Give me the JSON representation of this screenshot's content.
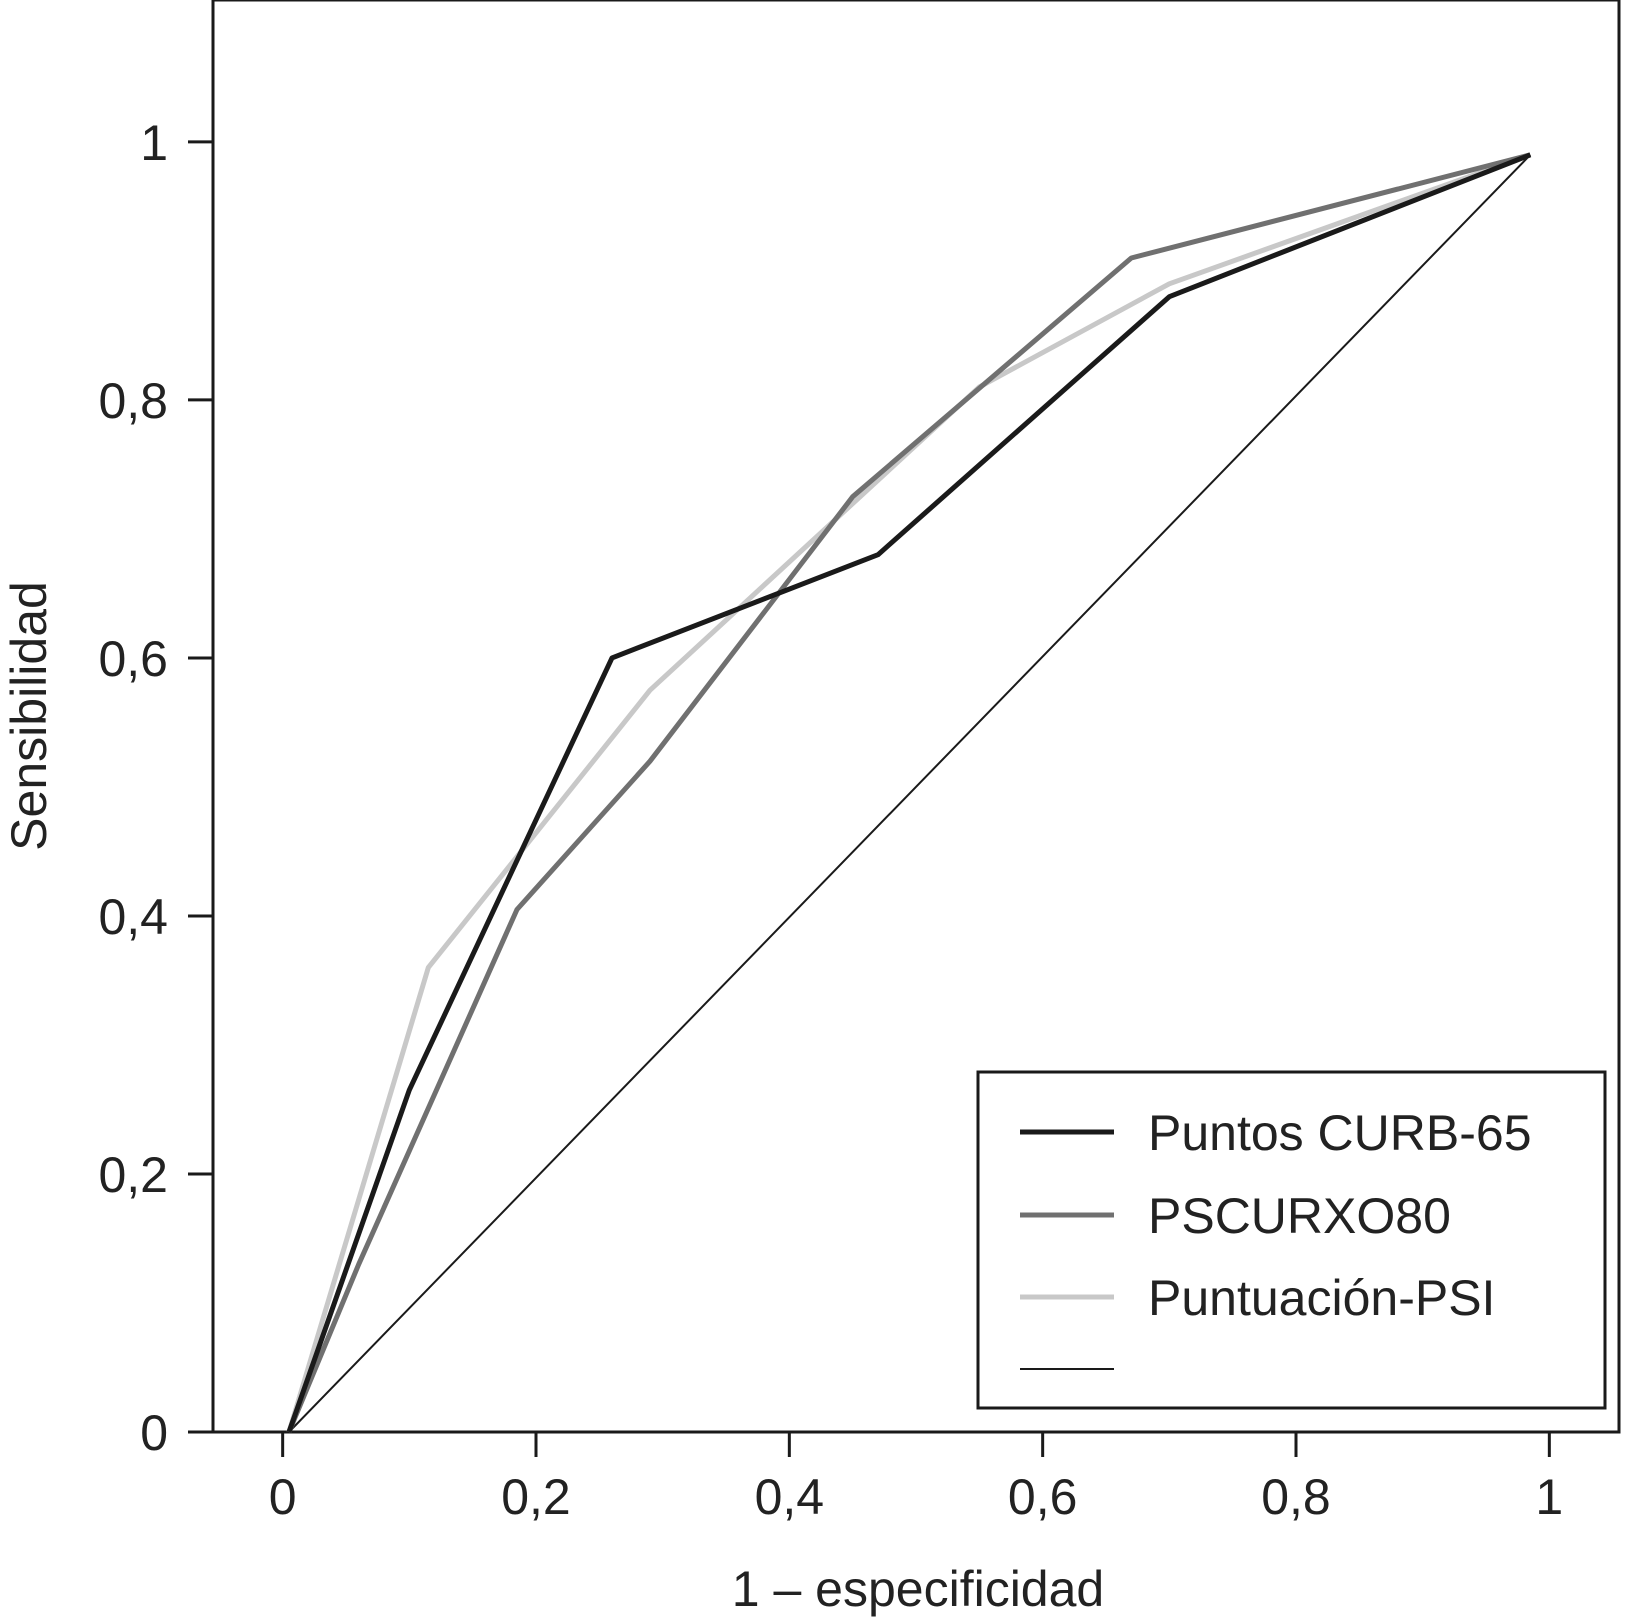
{
  "chart_data": {
    "type": "line",
    "title": "",
    "xlabel": "1 – especificidad",
    "ylabel": "Sensibilidad",
    "xlim": [
      -0.055,
      1.055
    ],
    "ylim": [
      -0.0,
      1.11
    ],
    "x_ticks": [
      0,
      0.2,
      0.4,
      0.6,
      0.8,
      1
    ],
    "x_tick_labels": [
      "0",
      "0,2",
      "0,4",
      "0,6",
      "0,8",
      "1"
    ],
    "y_ticks": [
      0,
      0.2,
      0.4,
      0.6,
      0.8,
      1
    ],
    "y_tick_labels": [
      "0",
      "0,2",
      "0,4",
      "0,6",
      "0,8",
      "1"
    ],
    "grid": false,
    "legend_position": "bottom-right",
    "series": [
      {
        "name": "Puntos CURB-65",
        "color": "#1a1a1a",
        "width": "thick",
        "x": [
          0.005,
          0.1,
          0.26,
          0.47,
          0.7,
          0.985
        ],
        "y": [
          0.0,
          0.265,
          0.6,
          0.68,
          0.88,
          0.99
        ]
      },
      {
        "name": "PSCURXO80",
        "color": "#707070",
        "width": "thick",
        "x": [
          0.005,
          0.06,
          0.185,
          0.29,
          0.45,
          0.67,
          0.985
        ],
        "y": [
          0.0,
          0.13,
          0.405,
          0.52,
          0.725,
          0.91,
          0.99
        ]
      },
      {
        "name": "Puntuación-PSI",
        "color": "#c8c8c8",
        "width": "thick",
        "x": [
          0.005,
          0.115,
          0.29,
          0.55,
          0.7,
          0.985
        ],
        "y": [
          0.0,
          0.36,
          0.575,
          0.81,
          0.89,
          0.99
        ]
      },
      {
        "name": "",
        "color": "#1a1a1a",
        "width": "thin",
        "x": [
          0.005,
          0.985
        ],
        "y": [
          0.0,
          0.99
        ]
      }
    ]
  }
}
